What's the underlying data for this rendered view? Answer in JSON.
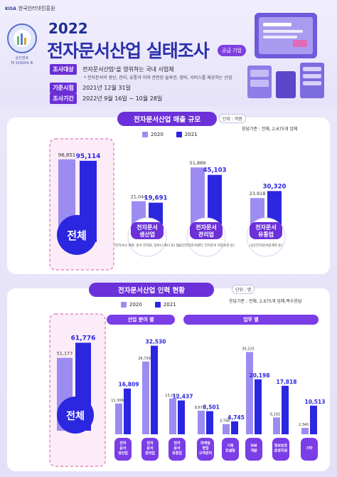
{
  "header": {
    "org": "한국인터넷진흥원",
    "org_mark": "KISA",
    "seal_caption": "승인번호",
    "seal_number": "제 329004 호",
    "year": "2022",
    "title": "전자문서산업 실태조사",
    "badge": "공급 기업",
    "info": [
      {
        "label": "조사대상",
        "value": "전자문서산업¹을 영위하는 국내 사업체"
      },
      {
        "label": "기준시점",
        "value": "2021년 12월 31일"
      },
      {
        "label": "조사기간",
        "value": "2022년 9월 16일 ~ 10월 28일"
      }
    ],
    "info_sub": "* 전자문서의 생산, 관리, 유통과 이와 관련된 솔루션, 장비, 서비스를 제공하는 산업"
  },
  "colors": {
    "bar2020": "#9c8cf2",
    "bar2021": "#2b26e0",
    "accent": "#6b30d8",
    "pink": "#e58ac7"
  },
  "sales": {
    "title": "전자문서산업 매출 규모",
    "unit": "단위 : 억원",
    "basis": "응답기준 : 전체, 2,675개 업체",
    "legend": [
      "2020",
      "2021"
    ],
    "total_label": "전체"
  },
  "workforce": {
    "title": "전자문서산업 인력 현황",
    "unit": "단위 : 명",
    "basis": "응답기준 : 전체, 2,675개 업체,복수응답",
    "legend": [
      "2020",
      "2021"
    ],
    "total_label": "전체",
    "group_industry": "산업 분야 별",
    "group_job": "업무 별"
  },
  "chart_data": [
    {
      "type": "bar",
      "title": "전자문서산업 매출 규모",
      "unit": "단위 : 억원",
      "categories": [
        "전체",
        "전자문서 생산업",
        "전자문서 관리업",
        "전자문서 유통업"
      ],
      "category_notes": [
        "",
        "(전자서식 개발, 문서 전자화, 장비(스캐너 등) 등)",
        "(공인전자문서센터, 전자문서 저장보관 등)",
        "(공인전자문서중계자 등)"
      ],
      "series": [
        {
          "name": "2020",
          "values": [
            96851,
            21044,
            51889,
            23918
          ],
          "labels": [
            "96,851",
            "21,044",
            "51,889",
            "23,918"
          ]
        },
        {
          "name": "2021",
          "values": [
            95114,
            19691,
            45103,
            30320
          ],
          "labels": [
            "95,114",
            "19,691",
            "45,103",
            "30,320"
          ]
        }
      ],
      "legend": "top-center",
      "grid": false
    },
    {
      "type": "bar",
      "title": "전자문서산업 인력 현황",
      "unit": "단위 : 명",
      "categories": [
        "전체",
        "전자 문서 생산업",
        "전자 문서 관리업",
        "전자 문서 유통업",
        "마케팅 영업 고객관리",
        "기획 컨설팅",
        "SW 개발",
        "정보보호 운영지원",
        "기타"
      ],
      "series": [
        {
          "name": "2020",
          "values": [
            51177,
            11306,
            26739,
            13132,
            8671,
            3748,
            30225,
            6192,
            2340
          ],
          "labels": [
            "51,177",
            "11,306",
            "26,739",
            "13,132",
            "8,671",
            "3,748",
            "30,225",
            "6,192",
            "2,340"
          ]
        },
        {
          "name": "2021",
          "values": [
            61776,
            16809,
            32530,
            12437,
            8501,
            4745,
            20198,
            17818,
            10513
          ],
          "labels": [
            "61,776",
            "16,809",
            "32,530",
            "12,437",
            "8,501",
            "4,745",
            "20,198",
            "17,818",
            "10,513"
          ]
        }
      ],
      "legend": "top-center",
      "grid": false
    }
  ]
}
